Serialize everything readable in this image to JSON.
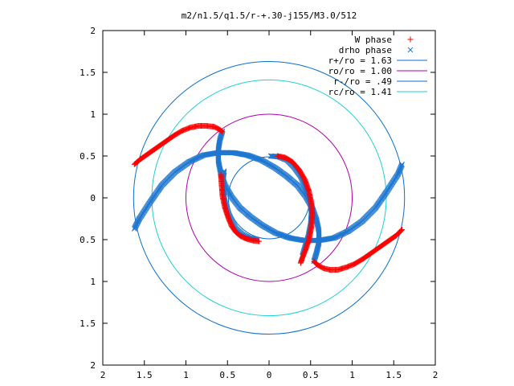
{
  "chart_data": {
    "type": "scatter",
    "title": "m2/n1.5/q1.5/r-+.30-j155/M3.0/512",
    "xlabel": "",
    "ylabel": "",
    "xlim": [
      -2,
      2
    ],
    "ylim": [
      -2,
      2
    ],
    "grid": false,
    "legend_position": "top-right",
    "x_tick_values": [
      -2,
      -1.5,
      -1,
      -0.5,
      0,
      0.5,
      1,
      1.5,
      2
    ],
    "x_tick_labels": [
      "2",
      "1.5",
      "1",
      "0.5",
      "0",
      "0.5",
      "1",
      "1.5",
      "2"
    ],
    "y_tick_values": [
      2,
      1.5,
      1,
      0.5,
      0,
      -0.5,
      -1,
      -1.5,
      -2
    ],
    "y_tick_labels": [
      "2",
      "1.5",
      "1",
      "0.5",
      "0",
      "0.5",
      "1",
      "1.5",
      "2"
    ],
    "series": [
      {
        "name": "W phase",
        "marker": "plus",
        "color": "#ff0000",
        "arms": [
          {
            "x": [
              -1.62,
              -1.55,
              -1.45,
              -1.35,
              -1.25,
              -1.15,
              -1.05,
              -0.95,
              -0.85,
              -0.75,
              -0.66,
              -0.6,
              -0.56
            ],
            "y": [
              0.4,
              0.46,
              0.53,
              0.6,
              0.67,
              0.74,
              0.8,
              0.84,
              0.86,
              0.86,
              0.85,
              0.82,
              0.79
            ]
          },
          {
            "x": [
              1.6,
              1.53,
              1.43,
              1.33,
              1.23,
              1.13,
              1.03,
              0.93,
              0.83,
              0.73,
              0.65,
              0.58,
              0.54
            ],
            "y": [
              -0.38,
              -0.45,
              -0.52,
              -0.59,
              -0.66,
              -0.73,
              -0.79,
              -0.83,
              -0.86,
              -0.86,
              -0.84,
              -0.8,
              -0.76
            ]
          },
          {
            "x": [
              0.1,
              0.2,
              0.28,
              0.36,
              0.43,
              0.48,
              0.51,
              0.52,
              0.51,
              0.48,
              0.44,
              0.4,
              0.38
            ],
            "y": [
              0.5,
              0.48,
              0.43,
              0.34,
              0.22,
              0.08,
              -0.06,
              -0.2,
              -0.35,
              -0.5,
              -0.62,
              -0.72,
              -0.78
            ]
          },
          {
            "x": [
              -0.58,
              -0.57,
              -0.56,
              -0.53,
              -0.49,
              -0.45,
              -0.4,
              -0.34,
              -0.27,
              -0.2,
              -0.12
            ],
            "y": [
              0.28,
              0.15,
              0.02,
              -0.12,
              -0.24,
              -0.34,
              -0.41,
              -0.46,
              -0.49,
              -0.51,
              -0.52
            ]
          }
        ]
      },
      {
        "name": "drho phase",
        "marker": "cross",
        "color": "#1f77d0",
        "arms": [
          {
            "x": [
              -0.56,
              -0.59,
              -0.61,
              -0.61,
              -0.58,
              -0.53,
              -0.45,
              -0.35,
              -0.22,
              -0.08,
              0.08,
              0.25,
              0.42,
              0.6,
              0.78,
              0.95,
              1.12,
              1.28,
              1.42,
              1.55,
              1.6
            ],
            "y": [
              0.8,
              0.7,
              0.58,
              0.44,
              0.29,
              0.15,
              0.01,
              -0.12,
              -0.23,
              -0.33,
              -0.42,
              -0.48,
              -0.51,
              -0.51,
              -0.48,
              -0.4,
              -0.28,
              -0.12,
              0.08,
              0.28,
              0.4
            ]
          },
          {
            "x": [
              0.54,
              0.57,
              0.6,
              0.6,
              0.57,
              0.52,
              0.44,
              0.34,
              0.21,
              0.07,
              -0.09,
              -0.26,
              -0.43,
              -0.61,
              -0.79,
              -0.96,
              -1.13,
              -1.29,
              -1.43,
              -1.56,
              -1.62
            ],
            "y": [
              -0.76,
              -0.66,
              -0.54,
              -0.4,
              -0.26,
              -0.12,
              0.02,
              0.15,
              0.26,
              0.36,
              0.45,
              0.51,
              0.54,
              0.54,
              0.51,
              0.43,
              0.31,
              0.15,
              -0.05,
              -0.25,
              -0.37
            ]
          },
          {
            "x": [
              0.02,
              0.12,
              0.22,
              0.3,
              0.38,
              0.44,
              0.49,
              0.51,
              0.5,
              0.47,
              0.43,
              0.4
            ],
            "y": [
              0.5,
              0.49,
              0.45,
              0.37,
              0.26,
              0.12,
              -0.02,
              -0.17,
              -0.32,
              -0.47,
              -0.6,
              -0.7
            ]
          },
          {
            "x": [
              -0.14,
              -0.24,
              -0.32,
              -0.4,
              -0.46,
              -0.51,
              -0.54,
              -0.55,
              -0.55,
              -0.54
            ],
            "y": [
              -0.5,
              -0.48,
              -0.44,
              -0.37,
              -0.27,
              -0.14,
              0.0,
              0.12,
              0.24,
              0.32
            ]
          }
        ]
      },
      {
        "name": "r+/ro = 1.63",
        "type": "circle",
        "radius": 1.63,
        "color": "#0b6fce"
      },
      {
        "name": "ro/ro = 1.00",
        "type": "circle",
        "radius": 1.0,
        "color": "#b000b0"
      },
      {
        "name": "r-/ro = .49",
        "type": "circle",
        "radius": 0.49,
        "color": "#0b6fce"
      },
      {
        "name": "rc/ro = 1.41",
        "type": "circle",
        "radius": 1.41,
        "color": "#1ed0d0"
      }
    ]
  }
}
